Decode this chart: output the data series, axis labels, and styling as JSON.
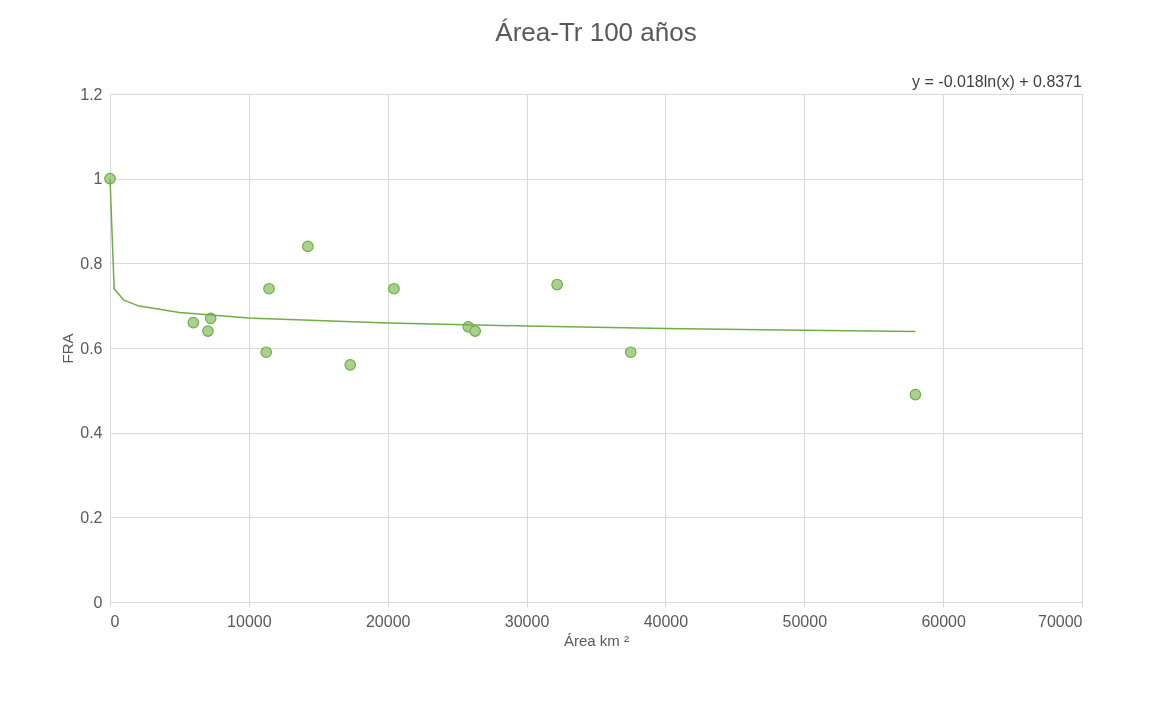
{
  "chart_data": {
    "type": "scatter",
    "title": "Área-Tr 100 años",
    "xlabel": "Área km ²",
    "ylabel": "FRA",
    "annotations": [
      "y = -0.018ln(x) + 0.8371"
    ],
    "series": [
      {
        "marker": "circle",
        "color": "#70ad47",
        "x": [
          0,
          6000,
          7050,
          7250,
          11250,
          11450,
          14250,
          17300,
          20450,
          25800,
          26300,
          32200,
          37500,
          58000
        ],
        "values": [
          1.0,
          0.66,
          0.64,
          0.67,
          0.59,
          0.74,
          0.84,
          0.56,
          0.74,
          0.65,
          0.64,
          0.75,
          0.59,
          0.49
        ]
      },
      {
        "type": "line",
        "marker": "none",
        "color": "#70ad47",
        "x": [
          0,
          300,
          1000,
          2000,
          5000,
          10000,
          20000,
          30000,
          40000,
          50000,
          58000
        ],
        "values": [
          1.0,
          0.74,
          0.713,
          0.7,
          0.684,
          0.671,
          0.659,
          0.652,
          0.646,
          0.642,
          0.639
        ]
      }
    ],
    "xlim": [
      0,
      70000
    ],
    "xticks": [
      0,
      10000,
      20000,
      30000,
      40000,
      50000,
      60000,
      70000
    ],
    "ylim": [
      0,
      1.2
    ],
    "yticks": [
      0,
      0.2,
      0.4,
      0.6,
      0.8,
      1,
      1.2
    ],
    "grid": true,
    "line_style": "solid"
  }
}
